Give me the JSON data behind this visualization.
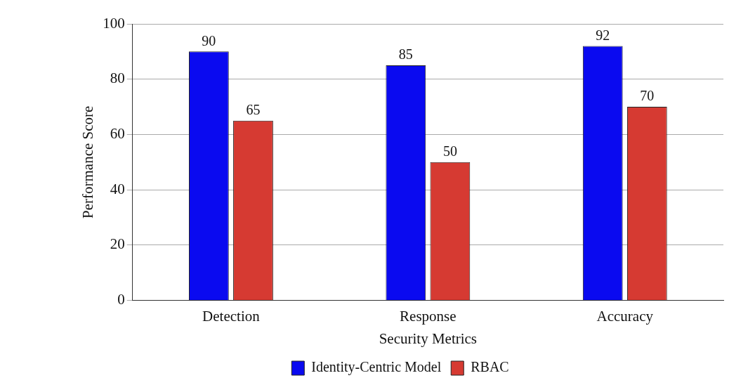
{
  "chart_data": {
    "type": "bar",
    "xlabel": "Security Metrics",
    "ylabel": "Performance Score",
    "categories": [
      "Detection",
      "Response",
      "Accuracy"
    ],
    "series": [
      {
        "name": "Identity-Centric Model",
        "color": "#0a0af0",
        "values": [
          90,
          85,
          92
        ]
      },
      {
        "name": "RBAC",
        "color": "#d63a32",
        "values": [
          65,
          50,
          70
        ]
      }
    ],
    "ylim": [
      0,
      100
    ],
    "yticks": [
      0,
      20,
      40,
      60,
      80,
      100
    ],
    "grid": "y",
    "legend": "bottom",
    "data_labels": true
  }
}
